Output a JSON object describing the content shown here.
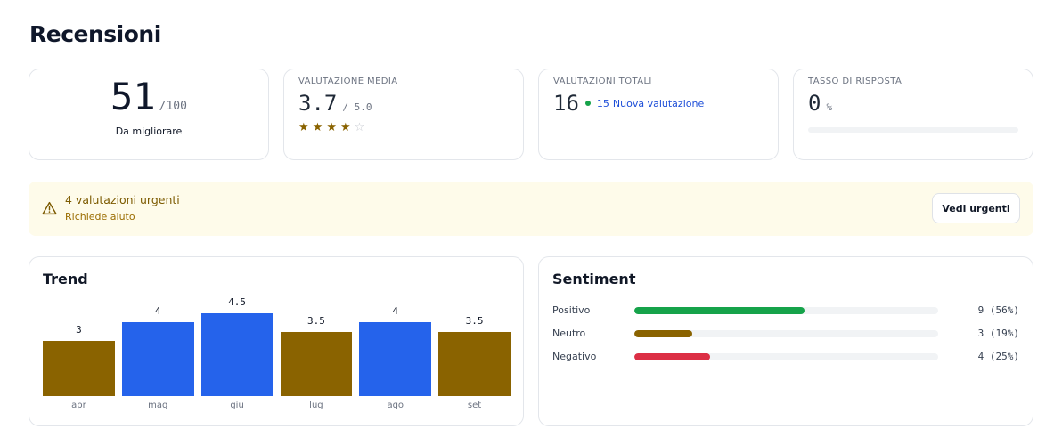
{
  "page": {
    "title": "Recensioni"
  },
  "score": {
    "value": "51",
    "max": "/100",
    "caption": "Da migliorare"
  },
  "average": {
    "label": "VALUTAZIONE MEDIA",
    "value": "3.7",
    "max": "/ 5.0",
    "rating": 3.7,
    "stars": [
      "★",
      "★",
      "★",
      "★",
      "☆"
    ]
  },
  "total": {
    "label": "VALUTAZIONI TOTALI",
    "value": "16",
    "new_count": "15",
    "new_label": "Nuova valutazione"
  },
  "response_rate": {
    "label": "TASSO DI RISPOSTA",
    "value": "0",
    "unit": "%",
    "fraction": 0
  },
  "alert": {
    "icon": "warning-triangle-icon",
    "title": "4 valutazioni urgenti",
    "subtitle": "Richiede aiuto",
    "button_label": "Vedi urgenti"
  },
  "trend": {
    "title": "Trend",
    "chart_data": {
      "type": "bar",
      "categories": [
        "apr",
        "mag",
        "giu",
        "lug",
        "ago",
        "set"
      ],
      "values": [
        3,
        4,
        4.5,
        3.5,
        4,
        3.5
      ],
      "value_labels": [
        "3",
        "4",
        "4.5",
        "3.5",
        "4",
        "3.5"
      ],
      "bar_colors": [
        "#8a6300",
        "#2563eb",
        "#2563eb",
        "#8a6300",
        "#2563eb",
        "#8a6300"
      ]
    }
  },
  "sentiment": {
    "title": "Sentiment",
    "rows": [
      {
        "label": "Positivo",
        "count_text": "9 (56%)",
        "fraction": 0.56,
        "color": "#16a34a"
      },
      {
        "label": "Neutro",
        "count_text": "3 (19%)",
        "fraction": 0.19,
        "color": "#8a6300"
      },
      {
        "label": "Negativo",
        "count_text": "4 (25%)",
        "fraction": 0.25,
        "color": "#dc2f45"
      }
    ]
  }
}
